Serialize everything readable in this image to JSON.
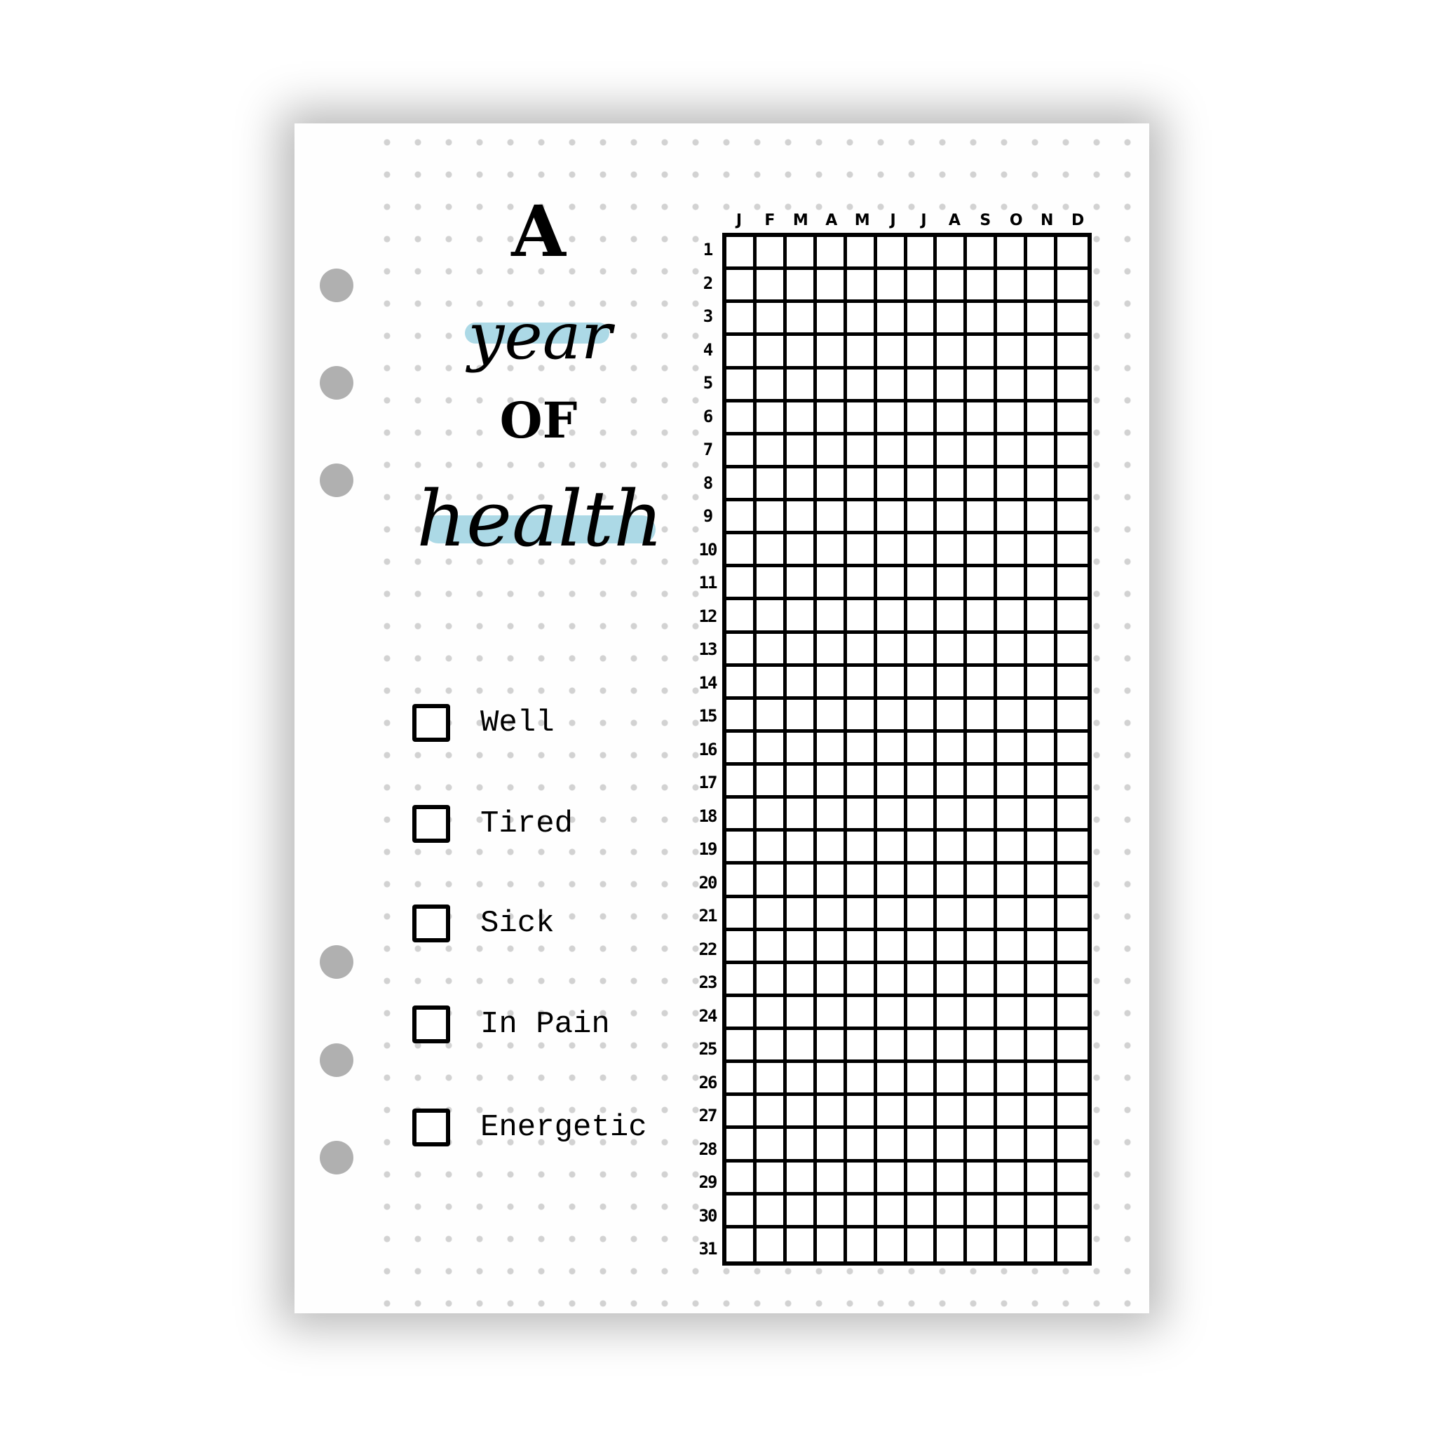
{
  "title": {
    "line1": "A",
    "line2": "year",
    "line3": "OF",
    "line4": "health"
  },
  "colors": {
    "highlight": "#acd9e6",
    "ink": "#000000",
    "holes": "#b0b0b0",
    "dots": "#d2d2d2"
  },
  "legend": [
    {
      "label": "Well",
      "checked": false
    },
    {
      "label": "Tired",
      "checked": false
    },
    {
      "label": "Sick",
      "checked": false
    },
    {
      "label": "In Pain",
      "checked": false
    },
    {
      "label": "Energetic",
      "checked": false
    }
  ],
  "tracker": {
    "months": [
      "J",
      "F",
      "M",
      "A",
      "M",
      "J",
      "J",
      "A",
      "S",
      "O",
      "N",
      "D"
    ],
    "days": [
      "1",
      "2",
      "3",
      "4",
      "5",
      "6",
      "7",
      "8",
      "9",
      "10",
      "11",
      "12",
      "13",
      "14",
      "15",
      "16",
      "17",
      "18",
      "19",
      "20",
      "21",
      "22",
      "23",
      "24",
      "25",
      "26",
      "27",
      "28",
      "29",
      "30",
      "31"
    ]
  }
}
